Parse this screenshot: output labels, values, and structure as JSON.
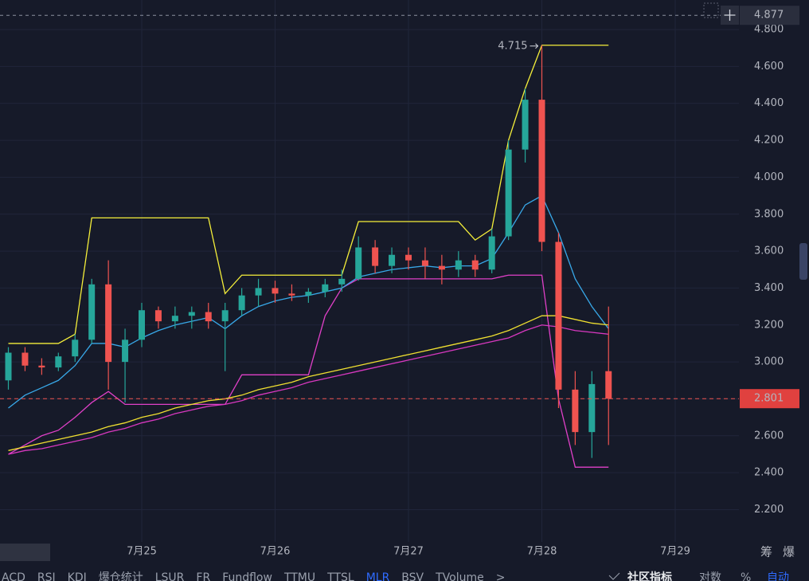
{
  "chart_data": {
    "type": "candlestick",
    "categories": [
      "",
      null,
      null,
      null,
      null,
      null,
      null,
      null,
      "7月25",
      null,
      null,
      null,
      null,
      null,
      null,
      null,
      "7月26",
      null,
      null,
      null,
      null,
      null,
      null,
      null,
      "7月27",
      null,
      null,
      null,
      null,
      null,
      null,
      null,
      "7月28",
      null,
      null,
      null,
      null,
      null,
      null,
      null,
      "7月29"
    ],
    "open": [
      2.9,
      3.05,
      2.98,
      2.97,
      3.03,
      3.12,
      3.42,
      3.0,
      3.12,
      3.28,
      3.22,
      3.25,
      3.27,
      3.22,
      3.28,
      3.36,
      3.4,
      3.37,
      3.36,
      3.38,
      3.42,
      3.45,
      3.62,
      3.52,
      3.58,
      3.55,
      3.52,
      3.5,
      3.55,
      3.5,
      3.68,
      4.15,
      4.42,
      3.65,
      2.85,
      2.62,
      2.95,
      null,
      null,
      null,
      null
    ],
    "high": [
      3.08,
      3.08,
      3.02,
      3.05,
      3.15,
      3.45,
      3.55,
      3.18,
      3.32,
      3.3,
      3.3,
      3.3,
      3.32,
      3.32,
      3.4,
      3.45,
      3.44,
      3.42,
      3.4,
      3.45,
      3.5,
      3.68,
      3.66,
      3.62,
      3.62,
      3.62,
      3.58,
      3.6,
      3.58,
      3.72,
      4.2,
      4.48,
      4.715,
      3.7,
      2.95,
      2.95,
      3.3,
      null,
      null,
      null,
      null
    ],
    "low": [
      2.85,
      2.95,
      2.93,
      2.95,
      3.0,
      3.1,
      2.85,
      2.78,
      3.08,
      3.18,
      3.18,
      3.18,
      3.18,
      2.95,
      3.25,
      3.3,
      3.32,
      3.33,
      3.32,
      3.35,
      3.38,
      3.44,
      3.48,
      3.48,
      3.5,
      3.45,
      3.42,
      3.46,
      3.46,
      3.48,
      3.66,
      4.08,
      3.6,
      2.75,
      2.55,
      2.48,
      2.55,
      null,
      null,
      null,
      null
    ],
    "close": [
      3.05,
      2.98,
      2.97,
      3.03,
      3.12,
      3.42,
      3.0,
      3.12,
      3.28,
      3.22,
      3.25,
      3.27,
      3.22,
      3.28,
      3.36,
      3.4,
      3.37,
      3.36,
      3.38,
      3.42,
      3.45,
      3.62,
      3.52,
      3.58,
      3.55,
      3.52,
      3.5,
      3.55,
      3.5,
      3.68,
      4.15,
      4.42,
      3.65,
      2.85,
      2.62,
      2.88,
      2.801,
      null,
      null,
      null,
      null
    ],
    "up_color": "#26a69a",
    "down_color": "#ef5350",
    "overlays": [
      {
        "color": "#f5ef3a",
        "values": [
          3.1,
          3.1,
          3.1,
          3.1,
          3.15,
          3.78,
          3.78,
          3.78,
          3.78,
          3.78,
          3.78,
          3.78,
          3.78,
          3.37,
          3.47,
          3.47,
          3.47,
          3.47,
          3.47,
          3.47,
          3.47,
          3.76,
          3.76,
          3.76,
          3.76,
          3.76,
          3.76,
          3.76,
          3.66,
          3.72,
          4.2,
          4.48,
          4.715,
          4.715,
          4.715,
          4.715,
          4.715,
          null,
          null,
          null,
          null
        ]
      },
      {
        "color": "#e040c8",
        "values": [
          2.5,
          2.55,
          2.6,
          2.63,
          2.7,
          2.78,
          2.84,
          2.77,
          2.77,
          2.77,
          2.77,
          2.77,
          2.77,
          2.77,
          2.93,
          2.93,
          2.93,
          2.93,
          2.93,
          3.25,
          3.4,
          3.45,
          3.45,
          3.45,
          3.45,
          3.45,
          3.45,
          3.45,
          3.45,
          3.45,
          3.47,
          3.47,
          3.47,
          2.8,
          2.43,
          2.43,
          2.43,
          null,
          null,
          null,
          null
        ]
      },
      {
        "color": "#38a8e8",
        "values": [
          2.75,
          2.82,
          2.86,
          2.9,
          2.98,
          3.1,
          3.1,
          3.08,
          3.13,
          3.17,
          3.2,
          3.22,
          3.24,
          3.18,
          3.25,
          3.3,
          3.33,
          3.35,
          3.36,
          3.38,
          3.4,
          3.46,
          3.48,
          3.5,
          3.51,
          3.52,
          3.51,
          3.52,
          3.52,
          3.56,
          3.7,
          3.85,
          3.9,
          3.7,
          3.45,
          3.3,
          3.18,
          null,
          null,
          null,
          null
        ]
      },
      {
        "color": "#f0e030",
        "values": [
          2.52,
          2.54,
          2.56,
          2.58,
          2.6,
          2.62,
          2.65,
          2.67,
          2.7,
          2.72,
          2.75,
          2.77,
          2.79,
          2.8,
          2.82,
          2.85,
          2.87,
          2.89,
          2.92,
          2.94,
          2.96,
          2.98,
          3.0,
          3.02,
          3.04,
          3.06,
          3.08,
          3.1,
          3.12,
          3.14,
          3.17,
          3.21,
          3.25,
          3.25,
          3.23,
          3.21,
          3.2,
          null,
          null,
          null,
          null
        ]
      },
      {
        "color": "#d838c0",
        "values": [
          2.5,
          2.52,
          2.53,
          2.55,
          2.57,
          2.59,
          2.62,
          2.64,
          2.67,
          2.69,
          2.72,
          2.74,
          2.76,
          2.77,
          2.79,
          2.82,
          2.84,
          2.86,
          2.89,
          2.91,
          2.93,
          2.95,
          2.97,
          2.99,
          3.01,
          3.03,
          3.05,
          3.07,
          3.09,
          3.11,
          3.13,
          3.17,
          3.2,
          3.19,
          3.17,
          3.16,
          3.15,
          null,
          null,
          null,
          null
        ]
      }
    ],
    "ylim": [
      2.025,
      4.96
    ],
    "yticks": [
      {
        "value": 2.2,
        "label": "2.200"
      },
      {
        "value": 2.4,
        "label": "2.400"
      },
      {
        "value": 2.6,
        "label": "2.600"
      },
      {
        "value": 2.8,
        "label": "2.800"
      },
      {
        "value": 3.0,
        "label": "3.000"
      },
      {
        "value": 3.2,
        "label": "3.200"
      },
      {
        "value": 3.4,
        "label": "3.400"
      },
      {
        "value": 3.6,
        "label": "3.600"
      },
      {
        "value": 3.8,
        "label": "3.800"
      },
      {
        "value": 4.0,
        "label": "4.000"
      },
      {
        "value": 4.2,
        "label": "4.200"
      },
      {
        "value": 4.4,
        "label": "4.400"
      },
      {
        "value": 4.6,
        "label": "4.600"
      },
      {
        "value": 4.8,
        "label": "4.800"
      }
    ],
    "grid": true,
    "max_annotation": 4.715,
    "last_price": 2.801,
    "crosshair_value": 4.877
  },
  "indicator_tabs": [
    "ACD",
    "RSI",
    "KDJ",
    "爆仓统计",
    "LSUR",
    "FR",
    "Fundflow",
    "TTMU",
    "TTSL",
    "MLR",
    "BSV",
    "TVolume",
    ">"
  ],
  "active_tab": 9,
  "toolbar": [
    "社区指标",
    "对数",
    "%",
    "自动"
  ],
  "side_buttons": [
    "筹",
    "爆"
  ]
}
